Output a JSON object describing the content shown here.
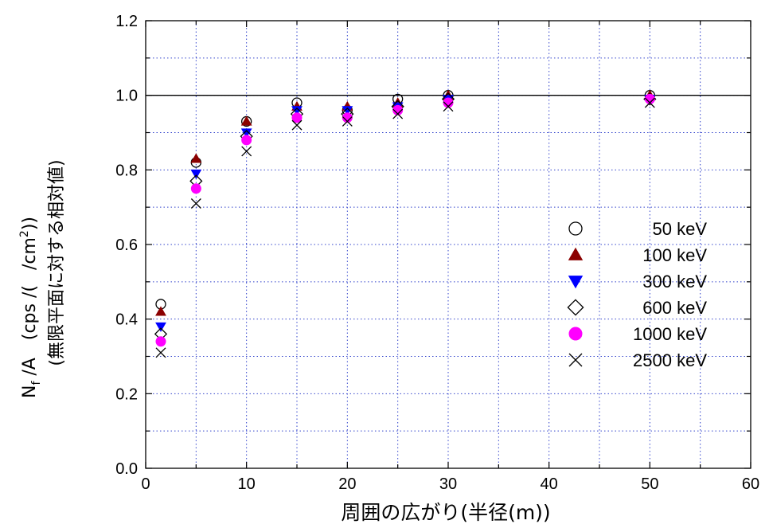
{
  "chart_data": {
    "type": "scatter",
    "xlabel": "周囲の広がり(半径(m))",
    "ylabel_line1": "(無限平面に対する相対値)",
    "ylabel_line2": {
      "n": "N",
      "n_sub": "f",
      "a": " /A",
      "units_open": "(cps /(",
      "units_cm": " /cm",
      "units_sup": "2",
      "units_close": "))"
    },
    "xlim": [
      0,
      60
    ],
    "ylim": [
      0.0,
      1.2
    ],
    "x_ticks": [
      "0",
      "10",
      "20",
      "30",
      "40",
      "50",
      "60"
    ],
    "y_ticks": [
      "0.0",
      "0.2",
      "0.4",
      "0.6",
      "0.8",
      "1.0",
      "1.2"
    ],
    "grid": true,
    "reference_line_y": 1.0,
    "legend_position": "right-middle",
    "series": [
      {
        "name": "50 keV",
        "marker": "circle-open",
        "color": "#000000",
        "x": [
          1.5,
          5,
          10,
          15,
          20,
          25,
          30,
          50
        ],
        "y": [
          0.44,
          0.82,
          0.93,
          0.98,
          0.96,
          0.99,
          1.0,
          1.0
        ]
      },
      {
        "name": "100 keV",
        "marker": "triangle-up",
        "color": "#8B0000",
        "x": [
          1.5,
          5,
          10,
          15,
          20,
          25,
          30,
          50
        ],
        "y": [
          0.42,
          0.83,
          0.93,
          0.97,
          0.97,
          0.98,
          1.0,
          1.0
        ]
      },
      {
        "name": "300 keV",
        "marker": "triangle-down",
        "color": "#0000FF",
        "x": [
          1.5,
          5,
          10,
          15,
          20,
          25,
          30,
          50
        ],
        "y": [
          0.38,
          0.79,
          0.9,
          0.96,
          0.96,
          0.97,
          0.99,
          0.99
        ]
      },
      {
        "name": "600 keV",
        "marker": "diamond-open",
        "color": "#000000",
        "x": [
          1.5,
          5,
          10,
          15,
          20,
          25,
          30,
          50
        ],
        "y": [
          0.36,
          0.77,
          0.89,
          0.95,
          0.95,
          0.97,
          0.99,
          0.99
        ]
      },
      {
        "name": "1000 keV",
        "marker": "circle-filled",
        "color": "#FF00FF",
        "x": [
          1.5,
          5,
          10,
          15,
          20,
          25,
          30,
          50
        ],
        "y": [
          0.34,
          0.75,
          0.88,
          0.94,
          0.94,
          0.96,
          0.98,
          0.99
        ]
      },
      {
        "name": "2500 keV",
        "marker": "cross",
        "color": "#000000",
        "x": [
          1.5,
          5,
          10,
          15,
          20,
          25,
          30,
          50
        ],
        "y": [
          0.31,
          0.71,
          0.85,
          0.92,
          0.93,
          0.95,
          0.97,
          0.98
        ]
      }
    ]
  }
}
